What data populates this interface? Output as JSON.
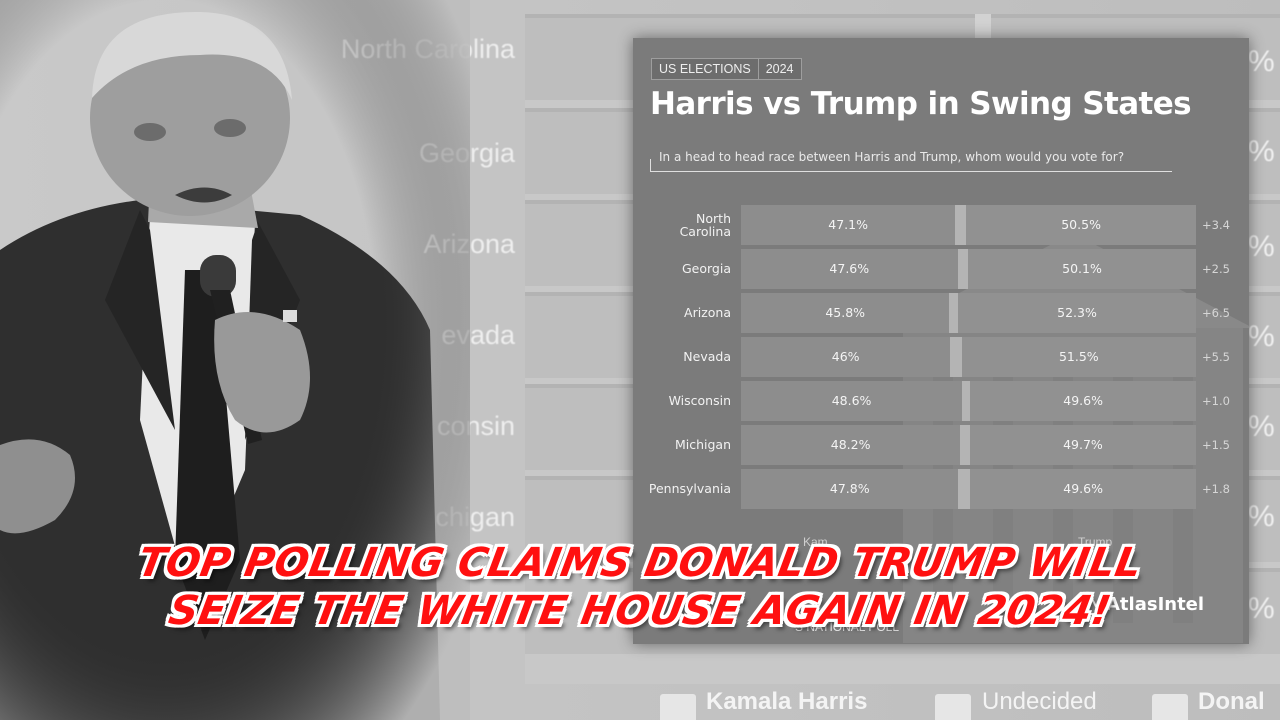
{
  "background": {
    "labels": [
      "North Carolina",
      "Georgia",
      "Arizona",
      "evada",
      "consin",
      "chigan"
    ],
    "pct": [
      "%",
      "%",
      "%",
      "%",
      "%",
      "%",
      "%"
    ],
    "legend": [
      "Kamala Harris",
      "Undecided",
      "Donal"
    ]
  },
  "card": {
    "tags": [
      "US ELECTIONS",
      "2024"
    ],
    "title": "Harris vs Trump in Swing States",
    "question": "In a head to head race between Harris and Trump, whom would you vote for?",
    "legend_fragments": [
      "Kam",
      "Trump"
    ],
    "footer": "S NATIONAL POLL",
    "brand": "AtlasIntel"
  },
  "chart_data": {
    "type": "bar",
    "orientation": "horizontal-stacked",
    "title": "Harris vs Trump in Swing States",
    "subtitle": "In a head to head race between Harris and Trump, whom would you vote for?",
    "categories": [
      "North Carolina",
      "Georgia",
      "Arizona",
      "Nevada",
      "Wisconsin",
      "Michigan",
      "Pennsylvania"
    ],
    "series": [
      {
        "values": [
          47.1,
          47.6,
          45.8,
          46,
          48.6,
          48.2,
          47.8
        ],
        "labels": [
          "47.1%",
          "47.6%",
          "45.8%",
          "46%",
          "48.6%",
          "48.2%",
          "47.8%"
        ]
      },
      {
        "values": [
          2.4,
          2.3,
          1.9,
          2.5,
          1.8,
          2.1,
          2.6
        ]
      },
      {
        "values": [
          50.5,
          50.1,
          52.3,
          51.5,
          49.6,
          49.7,
          49.6
        ],
        "labels": [
          "50.5%",
          "50.1%",
          "52.3%",
          "51.5%",
          "49.6%",
          "49.7%",
          "49.6%"
        ]
      }
    ],
    "margins": [
      "+3.4",
      "+2.5",
      "+6.5",
      "+5.5",
      "+1.0",
      "+1.5",
      "+1.8"
    ],
    "xlim": [
      0,
      100
    ]
  },
  "headline": {
    "line1": "TOP POLLING CLAIMS DONALD TRUMP WILL",
    "line2": "SEIZE THE WHITE HOUSE AGAIN IN 2024!"
  }
}
